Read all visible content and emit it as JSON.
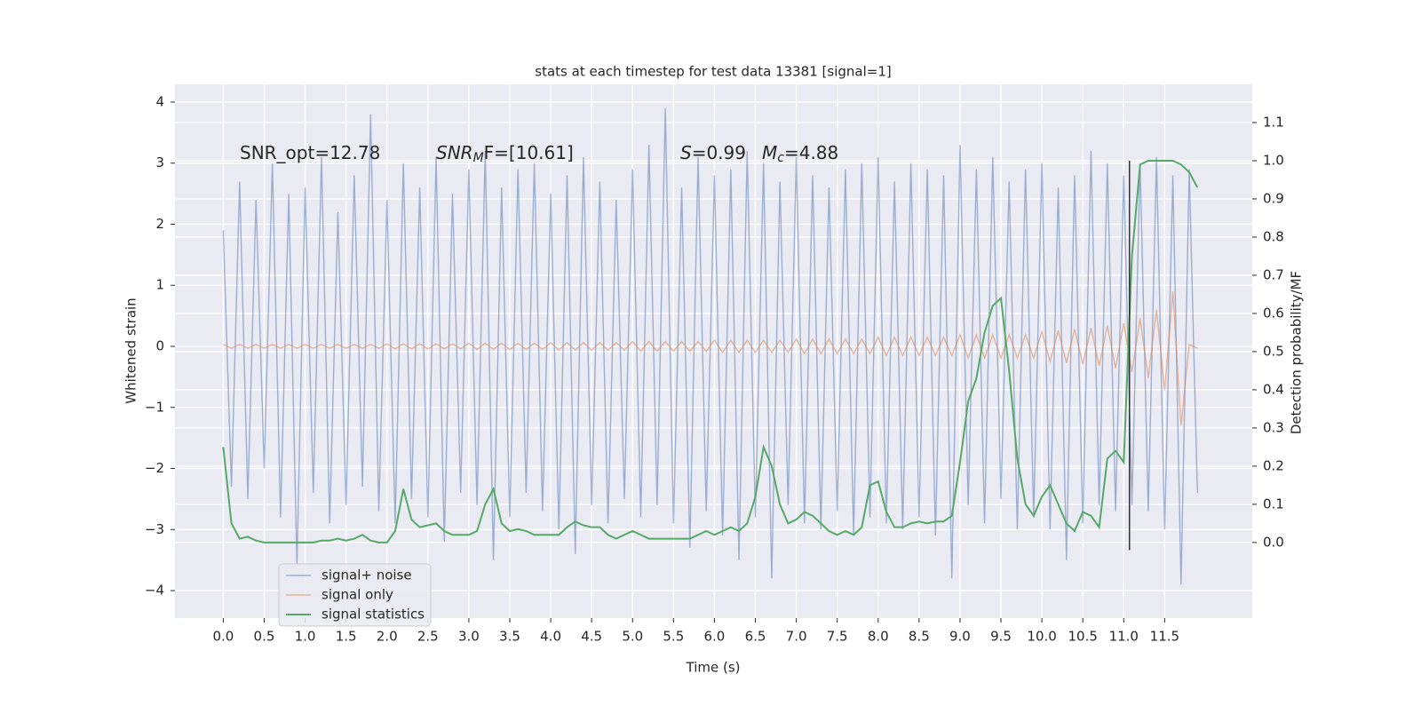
{
  "chart_data": {
    "type": "line",
    "title": "stats at each timestep for test data 13381 [signal=1]",
    "x_label": "Time (s)",
    "y_label": "Whitened strain",
    "y2_label": "Detection probability/MF",
    "grid": true,
    "legend": "lower left",
    "xlim": [
      -0.59,
      12.57
    ],
    "ylim": [
      -4.45,
      4.29
    ],
    "y2lim": [
      -0.198,
      1.2
    ],
    "xticks": [
      {
        "value": 0,
        "label": "0.0"
      },
      0.5,
      {
        "value": 1,
        "label": "1.0"
      },
      1.5,
      {
        "value": 2,
        "label": "2.0"
      },
      2.5,
      {
        "value": 3,
        "label": "3.0"
      },
      3.5,
      {
        "value": 4,
        "label": "4.0"
      },
      4.5,
      {
        "value": 5,
        "label": "5.0"
      },
      5.5,
      {
        "value": 6,
        "label": "6.0"
      },
      6.5,
      {
        "value": 7,
        "label": "7.0"
      },
      7.5,
      {
        "value": 8,
        "label": "8.0"
      },
      8.5,
      {
        "value": 9,
        "label": "9.0"
      },
      9.5,
      {
        "value": 10,
        "label": "10.0"
      },
      10.5,
      {
        "value": 11,
        "label": "11.0"
      },
      11.5
    ],
    "yticks": [
      {
        "value": -4,
        "label": "−4"
      },
      {
        "value": -3,
        "label": "−3"
      },
      {
        "value": -2,
        "label": "−2"
      },
      {
        "value": -1,
        "label": "−1"
      },
      0,
      1,
      2,
      3,
      4
    ],
    "y2ticks": [
      {
        "value": 0,
        "label": "0.0"
      },
      0.1,
      0.2,
      0.3,
      0.4,
      0.5,
      0.6,
      0.7,
      0.8,
      0.9,
      {
        "value": 1,
        "label": "1.0"
      },
      1.1
    ],
    "annotations": [
      {
        "text": "SNR_opt=12.78"
      },
      {
        "italic": "SNR",
        "sub": "M",
        "text": "F=[10.61]"
      },
      {
        "italic": "S",
        "text": "=0.99"
      },
      {
        "italic": "M",
        "sub": "c",
        "text": "=4.88"
      }
    ],
    "marker_line": {
      "x": 11.07,
      "from": -0.02,
      "to": 1.0,
      "color": "#333333"
    },
    "x": [
      0.0,
      0.1,
      0.2,
      0.3,
      0.4,
      0.5,
      0.6,
      0.7,
      0.8,
      0.9,
      1.0,
      1.1,
      1.2,
      1.3,
      1.4,
      1.5,
      1.6,
      1.7,
      1.8,
      1.9,
      2.0,
      2.1,
      2.2,
      2.3,
      2.4,
      2.5,
      2.6,
      2.7,
      2.8,
      2.9,
      3.0,
      3.1,
      3.2,
      3.3,
      3.4,
      3.5,
      3.6,
      3.7,
      3.8,
      3.9,
      4.0,
      4.1,
      4.2,
      4.3,
      4.4,
      4.5,
      4.6,
      4.7,
      4.8,
      4.9,
      5.0,
      5.1,
      5.2,
      5.3,
      5.4,
      5.5,
      5.6,
      5.7,
      5.8,
      5.9,
      6.0,
      6.1,
      6.2,
      6.3,
      6.4,
      6.5,
      6.6,
      6.7,
      6.8,
      6.9,
      7.0,
      7.1,
      7.2,
      7.3,
      7.4,
      7.5,
      7.6,
      7.7,
      7.8,
      7.9,
      8.0,
      8.1,
      8.2,
      8.3,
      8.4,
      8.5,
      8.6,
      8.7,
      8.8,
      8.9,
      9.0,
      9.1,
      9.2,
      9.3,
      9.4,
      9.5,
      9.6,
      9.7,
      9.8,
      9.9,
      10.0,
      10.1,
      10.2,
      10.3,
      10.4,
      10.5,
      10.6,
      10.7,
      10.8,
      10.9,
      11.0,
      11.1,
      11.2,
      11.3,
      11.4,
      11.5,
      11.6,
      11.7,
      11.8,
      11.9
    ],
    "series": [
      {
        "name": "signal+ noise",
        "color": "#4c72b0",
        "values": [
          1.9,
          -2.3,
          2.7,
          -2.5,
          2.4,
          -2.0,
          3.0,
          -2.8,
          2.5,
          -3.6,
          2.6,
          -2.4,
          3.1,
          -2.9,
          2.2,
          -2.6,
          2.8,
          -2.3,
          3.8,
          -2.7,
          2.4,
          -2.9,
          3.0,
          -2.5,
          2.6,
          -2.8,
          3.1,
          -3.2,
          2.5,
          -2.4,
          2.9,
          -2.6,
          3.2,
          -3.5,
          2.6,
          -2.8,
          2.9,
          -2.4,
          3.0,
          -2.7,
          2.5,
          -3.0,
          2.8,
          -3.4,
          3.1,
          -2.6,
          2.7,
          -2.9,
          2.4,
          -2.5,
          2.9,
          -2.8,
          3.3,
          -2.6,
          3.9,
          -2.9,
          2.6,
          -3.3,
          3.1,
          -2.7,
          2.8,
          -3.1,
          2.9,
          -3.5,
          3.2,
          -2.8,
          3.0,
          -3.8,
          2.7,
          -2.6,
          3.1,
          -2.9,
          2.8,
          -3.0,
          2.6,
          -2.7,
          2.9,
          -3.1,
          3.0,
          -2.8,
          3.1,
          -2.9,
          2.7,
          -3.0,
          3.0,
          -2.8,
          2.9,
          -3.1,
          2.8,
          -3.8,
          3.3,
          -2.6,
          2.9,
          -2.9,
          3.1,
          -2.5,
          2.7,
          -3.0,
          2.9,
          -2.8,
          3.0,
          -3.0,
          2.6,
          -3.5,
          2.8,
          -2.9,
          3.2,
          -2.6,
          3.0,
          -2.7,
          2.8,
          -2.6,
          3.0,
          -2.7,
          3.1,
          -3.0,
          2.8,
          -3.9,
          2.9,
          -2.4
        ]
      },
      {
        "name": "signal only",
        "color": "#dd8452",
        "values": [
          0.03,
          -0.03,
          0.03,
          -0.03,
          0.03,
          -0.03,
          0.03,
          -0.03,
          0.03,
          -0.03,
          0.03,
          -0.03,
          0.03,
          -0.03,
          0.03,
          -0.03,
          0.03,
          -0.03,
          0.03,
          -0.03,
          0.04,
          -0.04,
          0.04,
          -0.04,
          0.04,
          -0.04,
          0.04,
          -0.04,
          0.04,
          -0.04,
          0.05,
          -0.05,
          0.05,
          -0.05,
          0.05,
          -0.05,
          0.05,
          -0.05,
          0.05,
          -0.05,
          0.06,
          -0.06,
          0.06,
          -0.06,
          0.06,
          -0.06,
          0.06,
          -0.06,
          0.06,
          -0.06,
          0.08,
          -0.08,
          0.08,
          -0.08,
          0.08,
          -0.08,
          0.08,
          -0.08,
          0.08,
          -0.08,
          0.1,
          -0.1,
          0.1,
          -0.1,
          0.1,
          -0.1,
          0.1,
          -0.1,
          0.1,
          -0.1,
          0.12,
          -0.12,
          0.12,
          -0.12,
          0.12,
          -0.12,
          0.12,
          -0.12,
          0.12,
          -0.12,
          0.15,
          -0.15,
          0.15,
          -0.15,
          0.15,
          -0.15,
          0.15,
          -0.15,
          0.15,
          -0.15,
          0.19,
          -0.19,
          0.19,
          -0.19,
          0.19,
          -0.19,
          0.19,
          -0.19,
          0.19,
          -0.19,
          0.24,
          -0.25,
          0.26,
          -0.27,
          0.28,
          -0.29,
          0.3,
          -0.32,
          0.34,
          -0.36,
          0.38,
          -0.42,
          0.46,
          -0.52,
          0.6,
          -0.72,
          0.9,
          -1.3,
          0.03,
          -0.03
        ]
      },
      {
        "name": "signal statistics",
        "color": "#55a868",
        "axis": "y2",
        "values": [
          0.25,
          0.05,
          0.01,
          0.015,
          0.005,
          0.0,
          0.0,
          0.0,
          0.0,
          0.0,
          0.0,
          0.0,
          0.005,
          0.005,
          0.01,
          0.005,
          0.01,
          0.02,
          0.005,
          0.0,
          0.0,
          0.03,
          0.14,
          0.06,
          0.04,
          0.045,
          0.05,
          0.03,
          0.02,
          0.02,
          0.02,
          0.03,
          0.1,
          0.14,
          0.05,
          0.03,
          0.035,
          0.03,
          0.02,
          0.02,
          0.02,
          0.02,
          0.04,
          0.055,
          0.045,
          0.04,
          0.04,
          0.02,
          0.01,
          0.02,
          0.03,
          0.02,
          0.01,
          0.01,
          0.01,
          0.01,
          0.01,
          0.01,
          0.02,
          0.03,
          0.02,
          0.03,
          0.04,
          0.03,
          0.05,
          0.12,
          0.25,
          0.2,
          0.1,
          0.05,
          0.06,
          0.08,
          0.07,
          0.05,
          0.03,
          0.02,
          0.03,
          0.02,
          0.04,
          0.15,
          0.16,
          0.08,
          0.04,
          0.04,
          0.05,
          0.055,
          0.05,
          0.055,
          0.055,
          0.07,
          0.21,
          0.37,
          0.43,
          0.55,
          0.62,
          0.64,
          0.45,
          0.22,
          0.1,
          0.07,
          0.12,
          0.15,
          0.1,
          0.05,
          0.03,
          0.08,
          0.07,
          0.04,
          0.22,
          0.24,
          0.21,
          0.75,
          0.99,
          1.0,
          1.0,
          1.0,
          1.0,
          0.99,
          0.97,
          0.93
        ]
      }
    ]
  }
}
